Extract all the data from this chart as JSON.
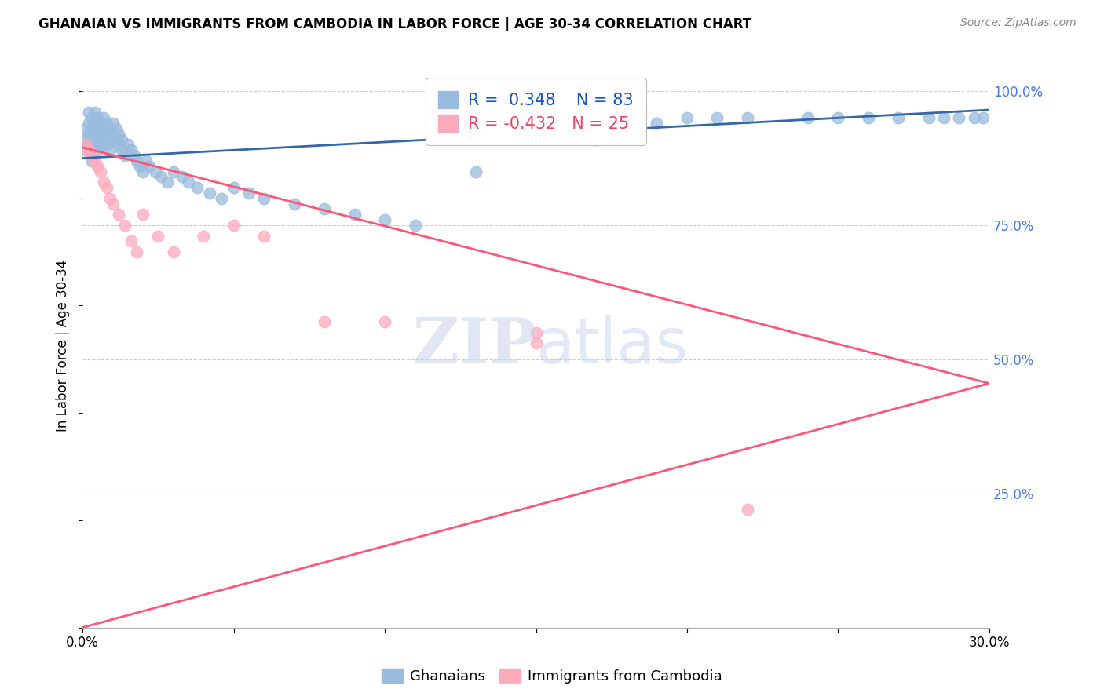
{
  "title": "GHANAIAN VS IMMIGRANTS FROM CAMBODIA IN LABOR FORCE | AGE 30-34 CORRELATION CHART",
  "source_text": "Source: ZipAtlas.com",
  "ylabel": "In Labor Force | Age 30-34",
  "xlim": [
    0.0,
    0.3
  ],
  "ylim": [
    0.0,
    1.05
  ],
  "yticks": [
    0.25,
    0.5,
    0.75,
    1.0
  ],
  "ytick_labels": [
    "25.0%",
    "50.0%",
    "75.0%",
    "100.0%"
  ],
  "xticks": [
    0.0,
    0.05,
    0.1,
    0.15,
    0.2,
    0.25,
    0.3
  ],
  "xtick_labels": [
    "0.0%",
    "",
    "",
    "",
    "",
    "",
    "30.0%"
  ],
  "r_ghanaian": 0.348,
  "n_ghanaian": 83,
  "r_cambodia": -0.432,
  "n_cambodia": 25,
  "blue_scatter_color": "#99BBDD",
  "pink_scatter_color": "#FFAABB",
  "blue_line_color": "#3366AA",
  "pink_line_color": "#FF5577",
  "blue_text_color": "#1155CC",
  "pink_text_color": "#EE4466",
  "right_axis_color": "#4477FF",
  "blue_trend_x0": 0.0,
  "blue_trend_y0": 0.875,
  "blue_trend_x1": 0.3,
  "blue_trend_y1": 0.965,
  "pink_trend_x0": 0.0,
  "pink_trend_y0": 0.895,
  "pink_trend_x1": 0.3,
  "pink_trend_y1": 0.455,
  "gh_x": [
    0.001,
    0.001,
    0.001,
    0.002,
    0.002,
    0.002,
    0.002,
    0.003,
    0.003,
    0.003,
    0.003,
    0.003,
    0.004,
    0.004,
    0.004,
    0.004,
    0.005,
    0.005,
    0.005,
    0.005,
    0.006,
    0.006,
    0.006,
    0.007,
    0.007,
    0.007,
    0.008,
    0.008,
    0.008,
    0.009,
    0.009,
    0.009,
    0.01,
    0.01,
    0.011,
    0.011,
    0.012,
    0.012,
    0.013,
    0.013,
    0.014,
    0.015,
    0.016,
    0.017,
    0.018,
    0.019,
    0.02,
    0.021,
    0.022,
    0.024,
    0.026,
    0.028,
    0.03,
    0.033,
    0.035,
    0.038,
    0.042,
    0.046,
    0.05,
    0.055,
    0.06,
    0.07,
    0.08,
    0.09,
    0.1,
    0.11,
    0.13,
    0.15,
    0.16,
    0.17,
    0.19,
    0.2,
    0.21,
    0.22,
    0.24,
    0.25,
    0.26,
    0.27,
    0.28,
    0.285,
    0.29,
    0.295,
    0.298
  ],
  "gh_y": [
    0.93,
    0.91,
    0.89,
    0.96,
    0.94,
    0.92,
    0.9,
    0.95,
    0.93,
    0.91,
    0.89,
    0.87,
    0.96,
    0.94,
    0.92,
    0.9,
    0.95,
    0.93,
    0.91,
    0.89,
    0.94,
    0.92,
    0.9,
    0.95,
    0.93,
    0.91,
    0.94,
    0.92,
    0.9,
    0.93,
    0.91,
    0.89,
    0.94,
    0.92,
    0.93,
    0.91,
    0.92,
    0.9,
    0.91,
    0.89,
    0.88,
    0.9,
    0.89,
    0.88,
    0.87,
    0.86,
    0.85,
    0.87,
    0.86,
    0.85,
    0.84,
    0.83,
    0.85,
    0.84,
    0.83,
    0.82,
    0.81,
    0.8,
    0.82,
    0.81,
    0.8,
    0.79,
    0.78,
    0.77,
    0.76,
    0.75,
    0.85,
    0.93,
    0.92,
    0.91,
    0.94,
    0.95,
    0.95,
    0.95,
    0.95,
    0.95,
    0.95,
    0.95,
    0.95,
    0.95,
    0.95,
    0.95,
    0.95
  ],
  "cam_x": [
    0.001,
    0.002,
    0.003,
    0.004,
    0.005,
    0.006,
    0.007,
    0.008,
    0.009,
    0.01,
    0.012,
    0.014,
    0.016,
    0.018,
    0.02,
    0.025,
    0.03,
    0.04,
    0.05,
    0.06,
    0.08,
    0.1,
    0.15,
    0.22,
    0.15
  ],
  "cam_y": [
    0.9,
    0.89,
    0.88,
    0.87,
    0.86,
    0.85,
    0.83,
    0.82,
    0.8,
    0.79,
    0.77,
    0.75,
    0.72,
    0.7,
    0.77,
    0.73,
    0.7,
    0.73,
    0.75,
    0.73,
    0.57,
    0.57,
    0.55,
    0.22,
    0.53
  ]
}
